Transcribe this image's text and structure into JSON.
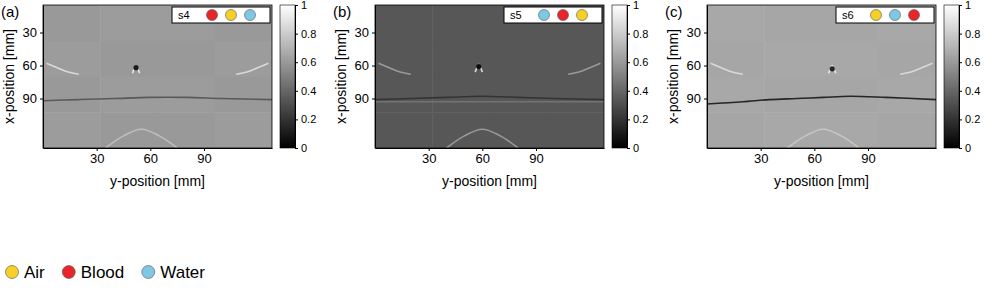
{
  "chart_data": [
    {
      "type": "heatmap",
      "title": "(a)",
      "sample": "s4",
      "sample_colors": [
        "#e8262a",
        "#f5d027",
        "#7ec8e6"
      ],
      "xlabel": "y-position [mm]",
      "ylabel": "x-position [mm]",
      "xlim": [
        0,
        128
      ],
      "ylim": [
        5,
        135
      ],
      "xticks": [
        30,
        60,
        90
      ],
      "yticks": [
        30,
        60,
        90
      ],
      "cells": [
        [
          0.6,
          0.61,
          0.61,
          0.6
        ],
        [
          0.61,
          0.6,
          0.6,
          0.61
        ],
        [
          0.6,
          0.61,
          0.61,
          0.6
        ],
        [
          0.61,
          0.6,
          0.6,
          0.61
        ]
      ],
      "colorbar_lim": [
        0,
        1
      ],
      "colorbar_ticks": [
        0,
        0.2,
        0.4,
        0.6,
        0.8,
        1
      ],
      "curves": [
        {
          "x": [
            50,
            51,
            52,
            53,
            54
          ],
          "y": [
            67,
            63,
            60,
            63,
            67
          ],
          "value": 0.9
        },
        {
          "x": [
            0,
            20,
            40,
            60,
            80,
            100,
            128
          ],
          "y": [
            92,
            91,
            90,
            89,
            89,
            90,
            91
          ],
          "value": 0.35
        },
        {
          "x": [
            2,
            8,
            14,
            20
          ],
          "y": [
            58,
            62,
            66,
            68
          ],
          "value": 0.85
        },
        {
          "x": [
            108,
            114,
            120,
            126
          ],
          "y": [
            68,
            66,
            62,
            58
          ],
          "value": 0.85
        },
        {
          "x": [
            35,
            45,
            55,
            65,
            75
          ],
          "y": [
            135,
            124,
            118,
            124,
            135
          ],
          "value": 0.75
        }
      ],
      "spots": [
        {
          "x": 52,
          "y": 62,
          "value": 0.1
        }
      ]
    },
    {
      "type": "heatmap",
      "title": "(b)",
      "sample": "s5",
      "sample_colors": [
        "#7ec8e6",
        "#e8262a",
        "#f5d027"
      ],
      "xlabel": "y-position [mm]",
      "ylabel": "x-position [mm]",
      "xlim": [
        0,
        128
      ],
      "ylim": [
        5,
        135
      ],
      "xticks": [
        30,
        60,
        90
      ],
      "yticks": [
        30,
        60,
        90
      ],
      "cells": [
        [
          0.34,
          0.34,
          0.34,
          0.34
        ],
        [
          0.34,
          0.34,
          0.34,
          0.34
        ],
        [
          0.34,
          0.34,
          0.34,
          0.34
        ],
        [
          0.34,
          0.34,
          0.34,
          0.34
        ]
      ],
      "colorbar_lim": [
        0,
        1
      ],
      "colorbar_ticks": [
        0,
        0.2,
        0.4,
        0.6,
        0.8,
        1
      ],
      "curves": [
        {
          "x": [
            56,
            57,
            58,
            59,
            60
          ],
          "y": [
            66,
            62,
            59,
            62,
            66
          ],
          "value": 0.85
        },
        {
          "x": [
            0,
            20,
            40,
            60,
            80,
            100,
            128
          ],
          "y": [
            91,
            90,
            89,
            88,
            89,
            90,
            91
          ],
          "value": 0.2
        },
        {
          "x": [
            0,
            128
          ],
          "y": [
            93,
            93
          ],
          "value": 0.45
        },
        {
          "x": [
            2,
            8,
            14,
            20
          ],
          "y": [
            58,
            62,
            66,
            68
          ],
          "value": 0.6
        },
        {
          "x": [
            108,
            114,
            120,
            126
          ],
          "y": [
            68,
            66,
            62,
            58
          ],
          "value": 0.6
        },
        {
          "x": [
            40,
            50,
            60,
            70,
            80
          ],
          "y": [
            135,
            124,
            118,
            124,
            135
          ],
          "value": 0.6
        }
      ],
      "spots": [
        {
          "x": 58,
          "y": 61,
          "value": 0.05
        }
      ]
    },
    {
      "type": "heatmap",
      "title": "(c)",
      "sample": "s6",
      "sample_colors": [
        "#f5d027",
        "#7ec8e6",
        "#e8262a"
      ],
      "xlabel": "y-position [mm]",
      "ylabel": "x-position [mm]",
      "xlim": [
        0,
        128
      ],
      "ylim": [
        5,
        135
      ],
      "xticks": [
        30,
        60,
        90
      ],
      "yticks": [
        30,
        60,
        90
      ],
      "cells": [
        [
          0.66,
          0.65,
          0.65,
          0.66
        ],
        [
          0.65,
          0.66,
          0.66,
          0.65
        ],
        [
          0.66,
          0.65,
          0.65,
          0.66
        ],
        [
          0.65,
          0.66,
          0.66,
          0.65
        ]
      ],
      "colorbar_lim": [
        0,
        1
      ],
      "colorbar_ticks": [
        0,
        0.2,
        0.4,
        0.6,
        0.8,
        1
      ],
      "curves": [
        {
          "x": [
            68,
            69,
            70,
            71,
            72
          ],
          "y": [
            67,
            63,
            60,
            63,
            67
          ],
          "value": 0.9
        },
        {
          "x": [
            0,
            20,
            35,
            50,
            65,
            80,
            100,
            128
          ],
          "y": [
            95,
            93,
            91,
            90,
            89,
            88,
            89,
            91
          ],
          "value": 0.15
        },
        {
          "x": [
            2,
            8,
            14,
            20
          ],
          "y": [
            58,
            62,
            66,
            68
          ],
          "value": 0.85
        },
        {
          "x": [
            108,
            114,
            120,
            126
          ],
          "y": [
            68,
            66,
            62,
            58
          ],
          "value": 0.85
        },
        {
          "x": [
            45,
            55,
            65,
            75,
            85
          ],
          "y": [
            135,
            124,
            118,
            124,
            135
          ],
          "value": 0.78
        }
      ],
      "spots": [
        {
          "x": 70,
          "y": 63,
          "value": 0.15
        }
      ]
    }
  ],
  "materials": [
    {
      "name": "Air",
      "color": "#f5d027"
    },
    {
      "name": "Blood",
      "color": "#e8262a"
    },
    {
      "name": "Water",
      "color": "#7ec8e6"
    }
  ]
}
